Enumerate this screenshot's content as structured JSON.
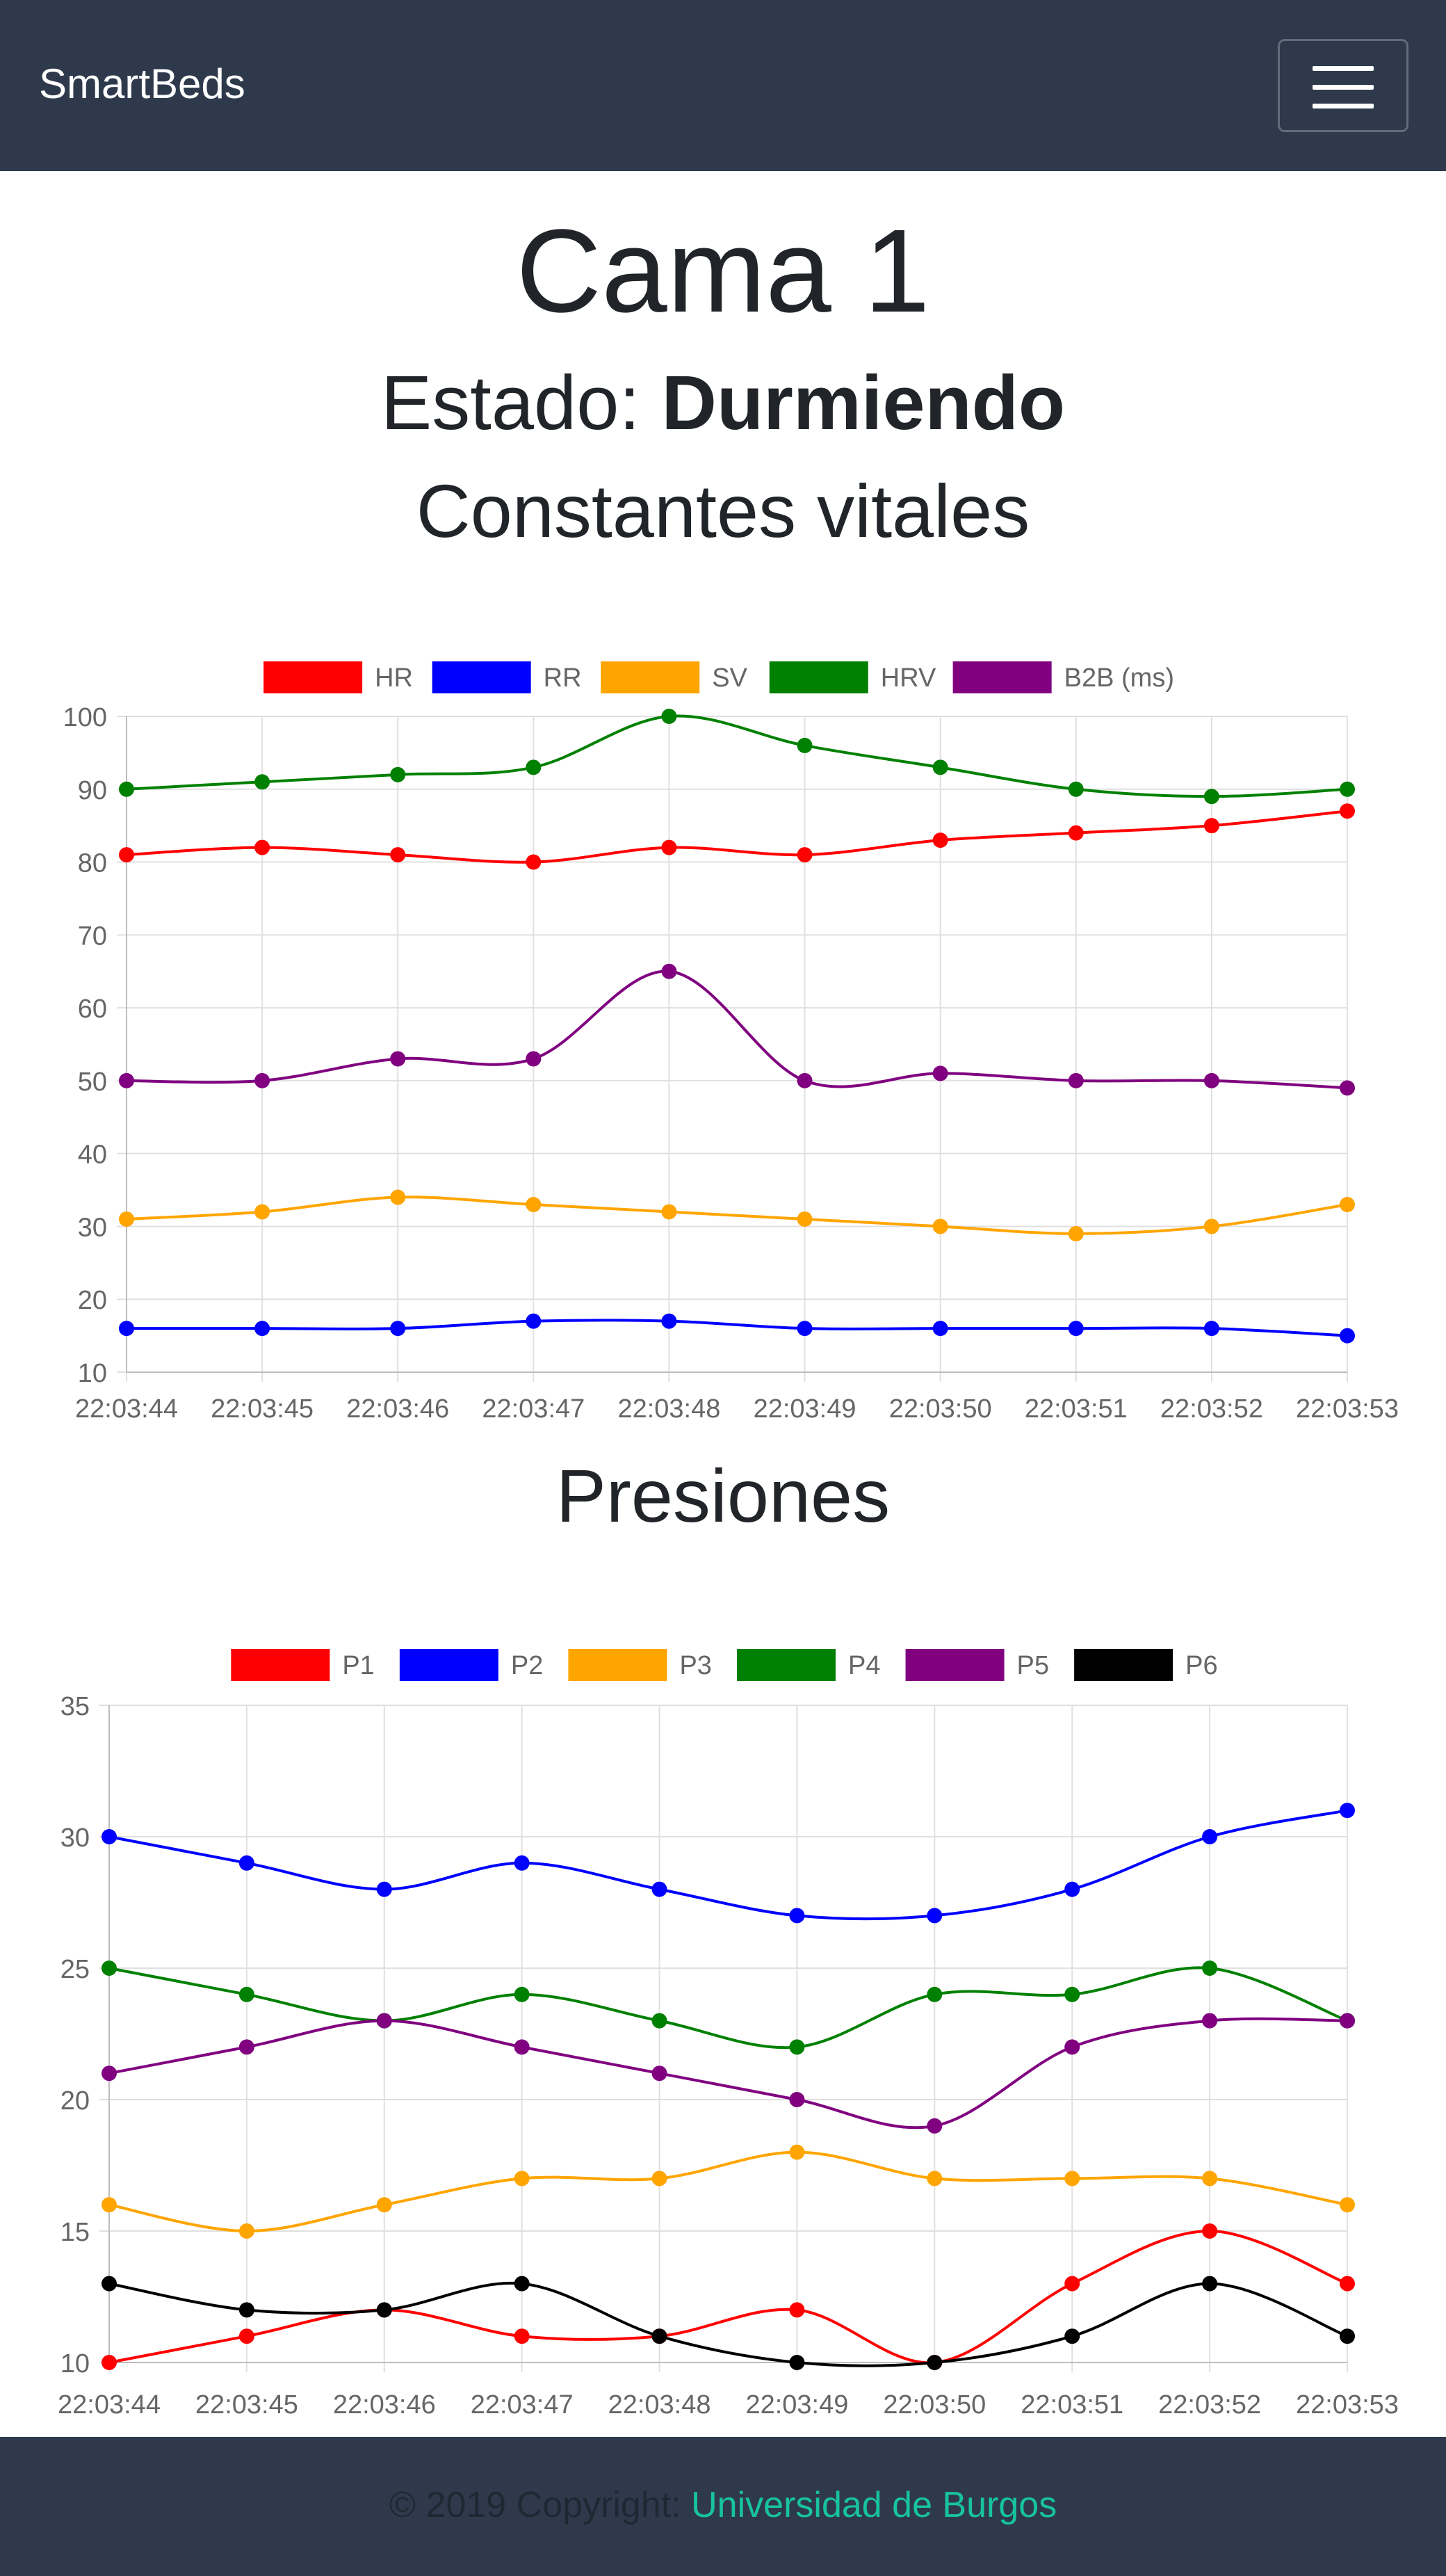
{
  "navbar": {
    "brand": "SmartBeds"
  },
  "page": {
    "title": "Cama 1",
    "status_label": "Estado:",
    "status_value": "Durmiendo",
    "vitals_title": "Constantes vitales",
    "pressures_title": "Presiones"
  },
  "footer": {
    "copyright": "© 2019 Copyright:",
    "link": "Universidad de Burgos"
  },
  "chart_data": [
    {
      "type": "line",
      "x": [
        "22:03:44",
        "22:03:45",
        "22:03:46",
        "22:03:47",
        "22:03:48",
        "22:03:49",
        "22:03:50",
        "22:03:51",
        "22:03:52",
        "22:03:53"
      ],
      "ylim": [
        10,
        100
      ],
      "yticks": [
        10,
        20,
        30,
        40,
        50,
        60,
        70,
        80,
        90,
        100
      ],
      "grid": true,
      "legend": "top-center",
      "series": [
        {
          "name": "HR",
          "color": "#ff0000",
          "values": [
            81,
            82,
            81,
            80,
            82,
            81,
            83,
            84,
            85,
            87
          ]
        },
        {
          "name": "RR",
          "color": "#0000ff",
          "values": [
            16,
            16,
            16,
            17,
            17,
            16,
            16,
            16,
            16,
            15
          ]
        },
        {
          "name": "SV",
          "color": "#ffa500",
          "values": [
            31,
            32,
            34,
            33,
            32,
            31,
            30,
            29,
            30,
            33
          ]
        },
        {
          "name": "HRV",
          "color": "#008000",
          "values": [
            90,
            91,
            92,
            93,
            100,
            96,
            93,
            90,
            89,
            90
          ]
        },
        {
          "name": "B2B (ms)",
          "color": "#800080",
          "values": [
            50,
            50,
            53,
            53,
            65,
            50,
            51,
            50,
            50,
            49
          ]
        }
      ]
    },
    {
      "type": "line",
      "x": [
        "22:03:44",
        "22:03:45",
        "22:03:46",
        "22:03:47",
        "22:03:48",
        "22:03:49",
        "22:03:50",
        "22:03:51",
        "22:03:52",
        "22:03:53"
      ],
      "ylim": [
        10,
        35
      ],
      "yticks": [
        10,
        15,
        20,
        25,
        30,
        35
      ],
      "grid": true,
      "legend": "top-center",
      "series": [
        {
          "name": "P1",
          "color": "#ff0000",
          "values": [
            10,
            11,
            12,
            11,
            11,
            12,
            10,
            13,
            15,
            13
          ]
        },
        {
          "name": "P2",
          "color": "#0000ff",
          "values": [
            30,
            29,
            28,
            29,
            28,
            27,
            27,
            28,
            30,
            31
          ]
        },
        {
          "name": "P3",
          "color": "#ffa500",
          "values": [
            16,
            15,
            16,
            17,
            17,
            18,
            17,
            17,
            17,
            16
          ]
        },
        {
          "name": "P4",
          "color": "#008000",
          "values": [
            25,
            24,
            23,
            24,
            23,
            22,
            24,
            24,
            25,
            23
          ]
        },
        {
          "name": "P5",
          "color": "#800080",
          "values": [
            21,
            22,
            23,
            22,
            21,
            20,
            19,
            22,
            23,
            23
          ]
        },
        {
          "name": "P6",
          "color": "#000000",
          "values": [
            13,
            12,
            12,
            13,
            11,
            10,
            10,
            11,
            13,
            11
          ]
        }
      ]
    }
  ]
}
